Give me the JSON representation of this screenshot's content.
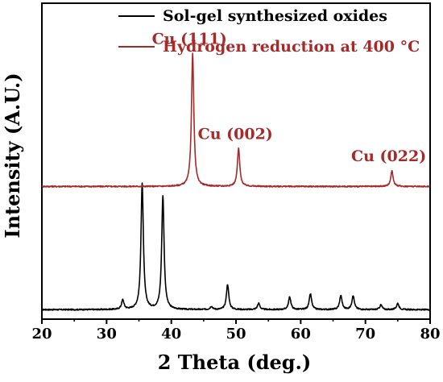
{
  "chart_data": {
    "type": "line",
    "title": "",
    "xlabel": "2 Theta (deg.)",
    "ylabel": "Intensity (A.U.)",
    "xlim": [
      20,
      80
    ],
    "ylim": [
      0,
      1
    ],
    "y_unit": "arbitrary, normalized",
    "x_ticks": [
      20,
      30,
      40,
      50,
      60,
      70,
      80
    ],
    "grid": false,
    "legend_position": "top",
    "series": [
      {
        "name": "Sol-gel synthesized oxides",
        "color": "#000000",
        "baseline": 0.03,
        "peaks": [
          {
            "x": 32.5,
            "height": 0.03
          },
          {
            "x": 35.5,
            "height": 0.4
          },
          {
            "x": 38.7,
            "height": 0.36
          },
          {
            "x": 46.2,
            "height": 0.01
          },
          {
            "x": 48.7,
            "height": 0.08
          },
          {
            "x": 53.5,
            "height": 0.02
          },
          {
            "x": 58.3,
            "height": 0.04
          },
          {
            "x": 61.5,
            "height": 0.05
          },
          {
            "x": 66.2,
            "height": 0.045
          },
          {
            "x": 68.1,
            "height": 0.045
          },
          {
            "x": 72.4,
            "height": 0.015
          },
          {
            "x": 75.0,
            "height": 0.02
          }
        ]
      },
      {
        "name": "Hydrogen reduction at 400 °C",
        "color": "#a52a2a",
        "baseline": 0.42,
        "peaks": [
          {
            "x": 43.3,
            "height": 0.42,
            "label": "Cu (111)"
          },
          {
            "x": 50.4,
            "height": 0.12,
            "label": "Cu (002)"
          },
          {
            "x": 74.1,
            "height": 0.05,
            "label": "Cu (022)"
          }
        ]
      }
    ]
  }
}
